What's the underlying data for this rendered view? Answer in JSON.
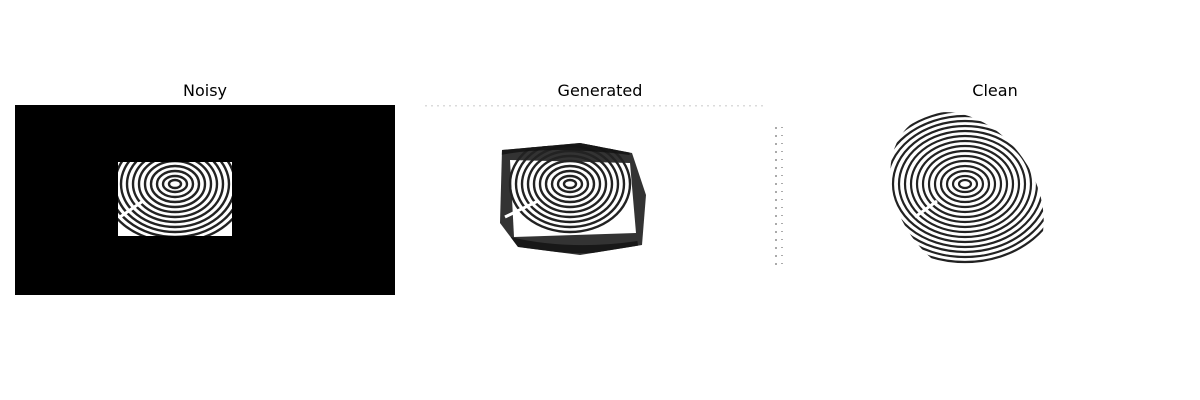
{
  "figure": {
    "panels": [
      {
        "title": "Noisy"
      },
      {
        "title": "Generated"
      },
      {
        "title": "Clean"
      }
    ]
  },
  "colors": {
    "background": "#ffffff",
    "ink": "#000000",
    "mask": "#000000",
    "paper": "#ffffff"
  }
}
